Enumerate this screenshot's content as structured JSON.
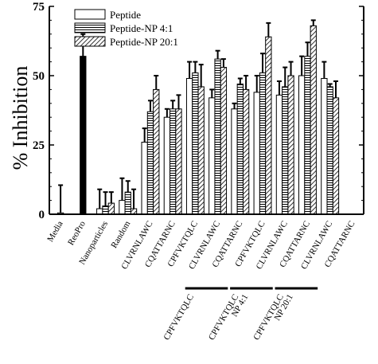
{
  "chart_data": {
    "type": "bar",
    "ylabel": "% Inhibition",
    "ylim": [
      0,
      75
    ],
    "yticks": [
      "0",
      "25",
      "50",
      "75"
    ],
    "categories": [
      "Media",
      "ReoPro",
      "Nanoparticles",
      "Random",
      "CLVRNLAWC",
      "CQATTARNC",
      "CPFVKTQLC",
      "CLVRNLAWC",
      "CQATTARNC",
      "CPFVKTQLC",
      "CLVRNLAWC",
      "CQATTARNC",
      "CLVRNLAWC",
      "CQATTARNC"
    ],
    "series": [
      {
        "name": "Peptide",
        "pattern": "plain"
      },
      {
        "name": "Peptide-NP 4:1",
        "pattern": "horizontal"
      },
      {
        "name": "Peptide-NP 20:1",
        "pattern": "diagonal"
      }
    ],
    "bars": [
      {
        "category": 0,
        "series": "single",
        "value": 0.5,
        "err": 10
      },
      {
        "category": 1,
        "series": "solid",
        "value": 57,
        "err": 8
      },
      {
        "category": 2,
        "series": 0,
        "value": 2,
        "err": 7
      },
      {
        "category": 2,
        "series": 1,
        "value": 3,
        "err": 5
      },
      {
        "category": 2,
        "series": 2,
        "value": 4,
        "err": 4
      },
      {
        "category": 3,
        "series": 0,
        "value": 5,
        "err": 8
      },
      {
        "category": 3,
        "series": 1,
        "value": 8,
        "err": 4
      },
      {
        "category": 3,
        "series": 2,
        "value": 2,
        "err": 7
      },
      {
        "category": 4,
        "series": 0,
        "value": 26,
        "err": 5
      },
      {
        "category": 4,
        "series": 1,
        "value": 37,
        "err": 4
      },
      {
        "category": 4,
        "series": 2,
        "value": 45,
        "err": 5
      },
      {
        "category": 5,
        "series": 0,
        "value": 35,
        "err": 3
      },
      {
        "category": 5,
        "series": 1,
        "value": 38,
        "err": 3
      },
      {
        "category": 5,
        "series": 2,
        "value": 38,
        "err": 5
      },
      {
        "category": 6,
        "series": 0,
        "value": 49,
        "err": 6
      },
      {
        "category": 6,
        "series": 1,
        "value": 51,
        "err": 4
      },
      {
        "category": 6,
        "series": 2,
        "value": 46,
        "err": 8
      },
      {
        "category": 7,
        "series": 0,
        "value": 42,
        "err": 3
      },
      {
        "category": 7,
        "series": 1,
        "value": 56,
        "err": 3
      },
      {
        "category": 7,
        "series": 2,
        "value": 53,
        "err": 3
      },
      {
        "category": 8,
        "series": 0,
        "value": 38,
        "err": 2
      },
      {
        "category": 8,
        "series": 1,
        "value": 47,
        "err": 2
      },
      {
        "category": 8,
        "series": 2,
        "value": 45,
        "err": 5
      },
      {
        "category": 9,
        "series": 0,
        "value": 44,
        "err": 6
      },
      {
        "category": 9,
        "series": 1,
        "value": 51,
        "err": 7
      },
      {
        "category": 9,
        "series": 2,
        "value": 64,
        "err": 5
      },
      {
        "category": 10,
        "series": 0,
        "value": 43,
        "err": 5
      },
      {
        "category": 10,
        "series": 1,
        "value": 46,
        "err": 7
      },
      {
        "category": 10,
        "series": 2,
        "value": 50,
        "err": 5
      },
      {
        "category": 11,
        "series": 0,
        "value": 50,
        "err": 7
      },
      {
        "category": 11,
        "series": 1,
        "value": 57,
        "err": 5
      },
      {
        "category": 11,
        "series": 2,
        "value": 68,
        "err": 2
      },
      {
        "category": 12,
        "series": 0,
        "value": 49,
        "err": 6
      },
      {
        "category": 12,
        "series": 1,
        "value": 46,
        "err": 1
      },
      {
        "category": 12,
        "series": 2,
        "value": 42,
        "err": 6
      }
    ],
    "group_labels": [
      {
        "text": "CPFVKTQLC",
        "from": 6,
        "to": 7
      },
      {
        "text": "CPFVKTQLC NP 4:1",
        "from": 8,
        "to": 9
      },
      {
        "text": "CPFVKTQLC NP 20:1",
        "from": 10,
        "to": 11
      }
    ]
  }
}
